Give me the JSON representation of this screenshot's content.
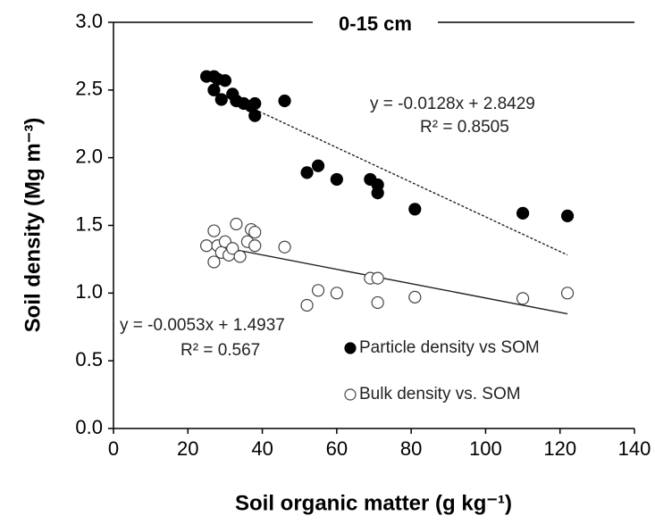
{
  "chart_data": {
    "type": "scatter",
    "title": "0-15 cm",
    "x_label": "Soil organic matter (g kg⁻¹)",
    "y_label": "Soil density (Mg m⁻³)",
    "xlim": [
      0,
      140
    ],
    "xticks": [
      0,
      20,
      40,
      60,
      80,
      100,
      120,
      140
    ],
    "ylim": [
      0,
      3
    ],
    "yticks": [
      {
        "value": 0,
        "label": "0.0"
      },
      0.5,
      {
        "value": 1,
        "label": "1.0"
      },
      1.5,
      {
        "value": 2,
        "label": "2.0"
      },
      2.5,
      {
        "value": 3,
        "label": "3.0"
      }
    ],
    "series": [
      {
        "name": "Particle density vs SOM",
        "color": "#000000",
        "marker": "filled",
        "x": [
          25,
          27,
          28,
          30,
          27,
          29,
          32,
          33,
          35,
          37,
          38,
          38,
          46,
          52,
          55,
          60,
          69,
          71,
          71,
          81,
          110,
          122
        ],
        "y": [
          2.6,
          2.6,
          2.58,
          2.57,
          2.5,
          2.43,
          2.47,
          2.42,
          2.4,
          2.38,
          2.4,
          2.31,
          2.42,
          1.89,
          1.94,
          1.84,
          1.84,
          1.8,
          1.74,
          1.62,
          1.59,
          1.57
        ]
      },
      {
        "name": "Bulk density vs. SOM",
        "color": "#000000",
        "marker": "open",
        "x": [
          25,
          27,
          27,
          28,
          29,
          30,
          31,
          32,
          33,
          34,
          36,
          37,
          38,
          38,
          46,
          52,
          55,
          60,
          69,
          71,
          71,
          81,
          110,
          122
        ],
        "y": [
          1.35,
          1.46,
          1.23,
          1.35,
          1.3,
          1.38,
          1.28,
          1.33,
          1.51,
          1.27,
          1.38,
          1.47,
          1.45,
          1.35,
          1.34,
          0.91,
          1.02,
          1.0,
          1.11,
          0.93,
          1.11,
          0.97,
          0.96,
          1.0
        ]
      }
    ],
    "trendlines": [
      {
        "slope": -0.0128,
        "intercept": 2.8429,
        "x_range": [
          38,
          122
        ],
        "dashed": true,
        "equation": "y = -0.0128x + 2.8429",
        "r2": "R² = 0.8505"
      },
      {
        "slope": -0.0053,
        "intercept": 1.4937,
        "x_range": [
          25,
          122
        ],
        "dashed": false,
        "equation": "y = -0.0053x + 1.4937",
        "r2": "R² = 0.567"
      }
    ]
  }
}
